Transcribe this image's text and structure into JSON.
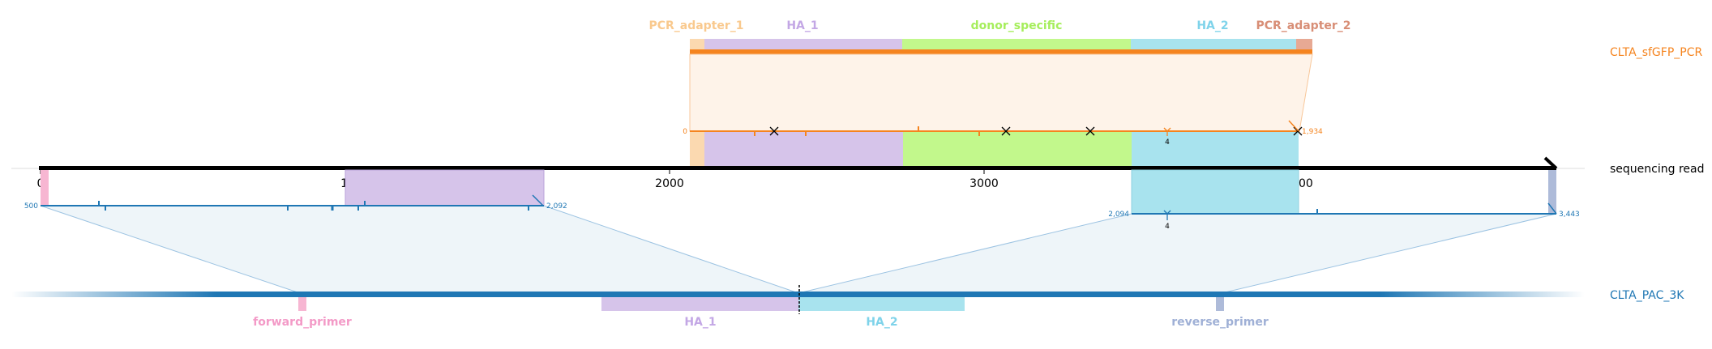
{
  "colors": {
    "pcr": "#f5841f",
    "read": "#000000",
    "ref": "#1f77b4",
    "pcr_adapter_1": "#fbd9b0",
    "ha_1": "#d6c4ea",
    "donor_specific": "#c2f88c",
    "ha_2": "#a8e3ee",
    "pcr_adapter_2": "#e7a994",
    "forward_primer": "#f7b6d2",
    "reverse_primer": "#aebbd9"
  },
  "targets": {
    "pcr": "CLTA_sfGFP_PCR",
    "read": "sequencing read",
    "ref": "CLTA_PAC_3K"
  },
  "top_features": [
    {
      "name": "PCR_adapter_1",
      "color": "#f9c98e",
      "start": 2073,
      "end": 2115
    },
    {
      "name": "HA_1",
      "color": "#c3a7e5",
      "start": 2115,
      "end": 2745
    },
    {
      "name": "donor_specific",
      "color": "#a6ee5c",
      "start": 2745,
      "end": 3475
    },
    {
      "name": "HA_2",
      "color": "#7fd3ea",
      "start": 3475,
      "end": 4000
    },
    {
      "name": "PCR_adapter_2",
      "color": "#d88e76",
      "start": 4000,
      "end": 4045
    }
  ],
  "bottom_features": [
    {
      "name": "forward_primer",
      "color": "#f39ac7"
    },
    {
      "name": "HA_1",
      "color": "#c3a7e5"
    },
    {
      "name": "HA_2",
      "color": "#7fd3ea"
    },
    {
      "name": "reverse_primer",
      "color": "#9fb0d6"
    }
  ],
  "read_axis": {
    "ticks": [
      "0",
      "1000",
      "2000",
      "3000",
      "4000"
    ],
    "tick_values": [
      0,
      1000,
      2000,
      3000,
      4000
    ],
    "max": 4820
  },
  "alignments": {
    "pcr": {
      "query_start": 2073,
      "query_end": 4003,
      "label_start": "0",
      "label_end": "1,934",
      "mismatch_positions": [
        2340,
        3080,
        3350,
        4000
      ],
      "indel_label": "4",
      "indel_pos": 3570
    },
    "ref_left": {
      "query_start": 0,
      "query_end": 1600,
      "label_start": "500",
      "label_end": "2,092"
    },
    "ref_right": {
      "query_start": 3465,
      "query_end": 4820,
      "label_start": "2,094",
      "label_end": "3,443",
      "indel_label": "4",
      "indel_pos": 3570
    }
  }
}
